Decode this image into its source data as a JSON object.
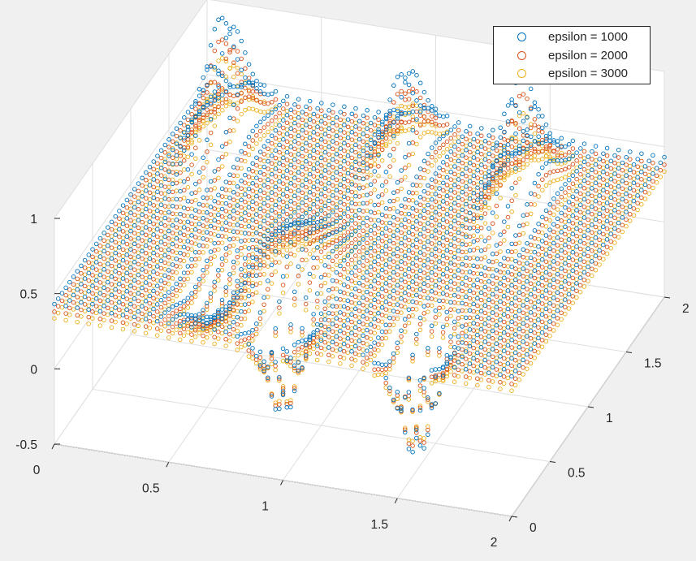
{
  "chart_data": {
    "type": "scatter",
    "title": "",
    "xlabel": "",
    "ylabel": "",
    "zlabel": "",
    "xlim": [
      0,
      2
    ],
    "ylim": [
      0,
      2
    ],
    "zlim": [
      -0.5,
      1
    ],
    "x_ticks": [
      "0",
      "0.5",
      "1",
      "1.5",
      "2"
    ],
    "y_ticks": [
      "0",
      "0.5",
      "1",
      "1.5",
      "2"
    ],
    "z_ticks": [
      "-0.5",
      "0",
      "0.5",
      "1"
    ],
    "grid": true,
    "legend_position": "top-right",
    "marker": "open-circle",
    "series": [
      {
        "name": "epsilon = 1000",
        "color": "#0072BD",
        "amplitude": 1.0,
        "offset": 0.43
      },
      {
        "name": "epsilon = 2000",
        "color": "#D95319",
        "amplitude": 0.88,
        "offset": 0.38
      },
      {
        "name": "epsilon = 3000",
        "color": "#EDB120",
        "amplitude": 0.78,
        "offset": 0.335
      }
    ]
  }
}
